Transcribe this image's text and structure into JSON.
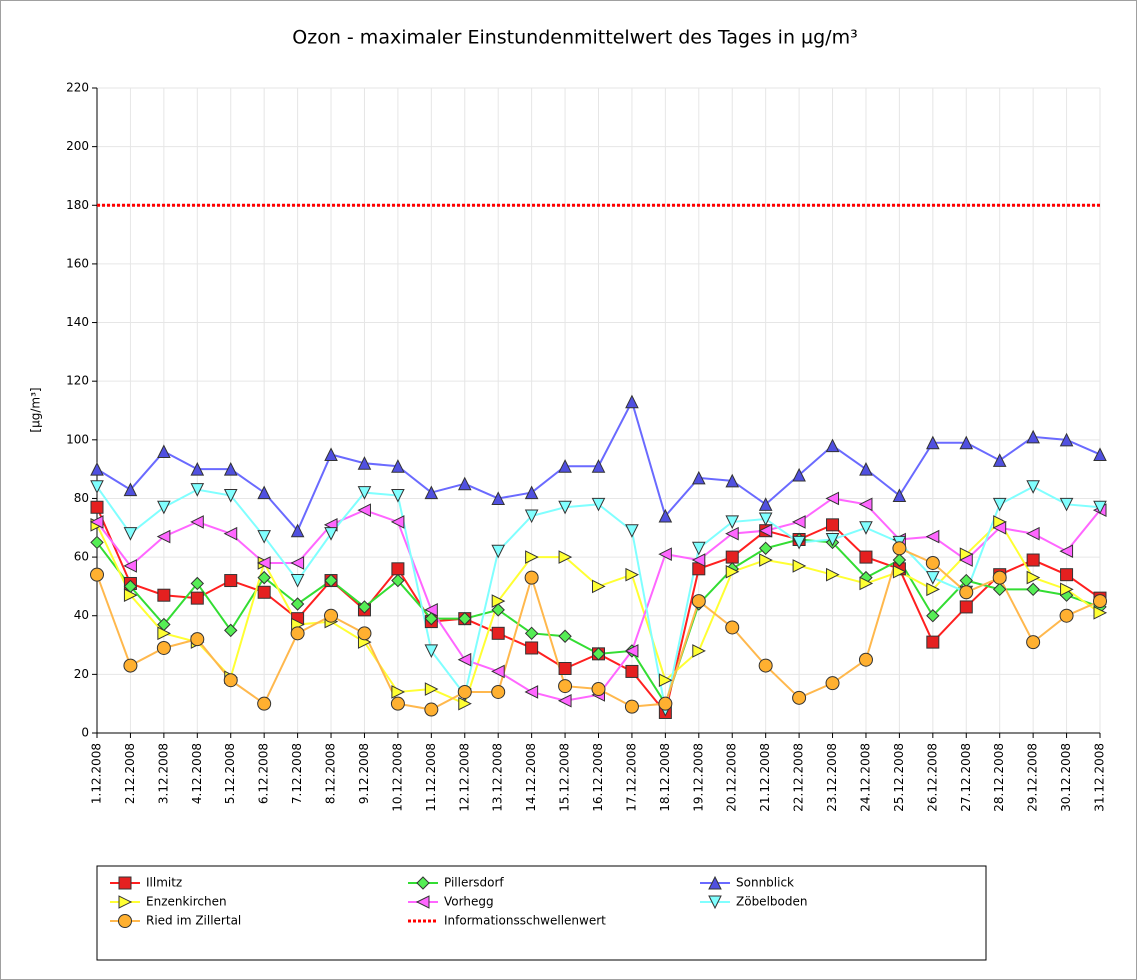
{
  "chart_data": {
    "type": "line",
    "title": "Ozon -  maximaler Einstundenmittelwert des Tages in µg/m³",
    "ylabel": "[µg/m³]",
    "categories": [
      "1.12.2008",
      "2.12.2008",
      "3.12.2008",
      "4.12.2008",
      "5.12.2008",
      "6.12.2008",
      "7.12.2008",
      "8.12.2008",
      "9.12.2008",
      "10.12.2008",
      "11.12.2008",
      "12.12.2008",
      "13.12.2008",
      "14.12.2008",
      "15.12.2008",
      "16.12.2008",
      "17.12.2008",
      "18.12.2008",
      "19.12.2008",
      "20.12.2008",
      "21.12.2008",
      "22.12.2008",
      "23.12.2008",
      "24.12.2008",
      "25.12.2008",
      "26.12.2008",
      "27.12.2008",
      "28.12.2008",
      "29.12.2008",
      "30.12.2008",
      "31.12.2008"
    ],
    "ylim": [
      0,
      220
    ],
    "yticks": [
      0,
      20,
      40,
      60,
      80,
      100,
      120,
      140,
      160,
      180,
      200,
      220
    ],
    "grid": true,
    "series": [
      {
        "name": "Illmitz",
        "color": "#ff2020",
        "fill": "#e52020",
        "marker": "square",
        "values": [
          77,
          51,
          47,
          46,
          52,
          48,
          39,
          52,
          42,
          56,
          38,
          39,
          34,
          29,
          22,
          27,
          21,
          7,
          56,
          60,
          69,
          66,
          71,
          60,
          56,
          31,
          43,
          54,
          59,
          54,
          46
        ]
      },
      {
        "name": "Pillersdorf",
        "color": "#33dd33",
        "fill": "#55ee55",
        "marker": "diamond",
        "values": [
          65,
          50,
          37,
          51,
          35,
          53,
          44,
          52,
          43,
          52,
          39,
          39,
          42,
          34,
          33,
          27,
          28,
          10,
          44,
          56,
          63,
          66,
          65,
          53,
          59,
          40,
          52,
          49,
          49,
          47,
          43
        ]
      },
      {
        "name": "Sonnblick",
        "color": "#6a6aff",
        "fill": "#5050e0",
        "marker": "up",
        "values": [
          90,
          83,
          96,
          90,
          90,
          82,
          69,
          95,
          92,
          91,
          82,
          85,
          80,
          82,
          91,
          91,
          113,
          74,
          87,
          86,
          78,
          88,
          98,
          90,
          81,
          99,
          99,
          93,
          101,
          100,
          95
        ]
      },
      {
        "name": "Enzenkirchen",
        "color": "#ffff33",
        "fill": "#ffff33",
        "marker": "right",
        "values": [
          71,
          47,
          34,
          31,
          19,
          58,
          37,
          38,
          31,
          14,
          15,
          10,
          45,
          60,
          60,
          50,
          54,
          18,
          28,
          55,
          59,
          57,
          54,
          51,
          55,
          49,
          61,
          72,
          53,
          49,
          41
        ]
      },
      {
        "name": "Vorhegg",
        "color": "#ff66ff",
        "fill": "#ff66ff",
        "marker": "left",
        "values": [
          72,
          57,
          67,
          72,
          68,
          58,
          58,
          71,
          76,
          72,
          42,
          25,
          21,
          14,
          11,
          13,
          28,
          61,
          59,
          68,
          69,
          72,
          80,
          78,
          66,
          67,
          59,
          70,
          68,
          62,
          76
        ]
      },
      {
        "name": "Zöbelboden",
        "color": "#80ffff",
        "fill": "#80ffff",
        "marker": "down",
        "values": [
          84,
          68,
          77,
          83,
          81,
          67,
          52,
          68,
          82,
          81,
          28,
          13,
          62,
          74,
          77,
          78,
          69,
          8,
          63,
          72,
          73,
          65,
          66,
          70,
          65,
          53,
          48,
          78,
          84,
          78,
          77
        ]
      },
      {
        "name": "Ried im Zillertal",
        "color": "#ffb84d",
        "fill": "#ffb030",
        "marker": "circle",
        "values": [
          54,
          23,
          29,
          32,
          18,
          10,
          34,
          40,
          34,
          10,
          8,
          14,
          14,
          53,
          16,
          15,
          9,
          10,
          45,
          36,
          23,
          12,
          17,
          25,
          63,
          58,
          48,
          53,
          31,
          40,
          45
        ]
      }
    ],
    "threshold": {
      "name": "Informationsschwellenwert",
      "value": 180,
      "color": "#ff0000"
    }
  }
}
